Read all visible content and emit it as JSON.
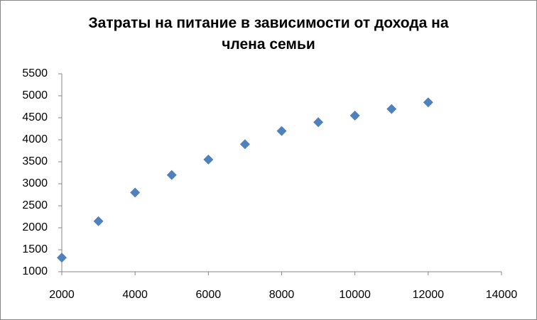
{
  "chart_data": {
    "type": "scatter",
    "title": "Затраты на питание в зависимости от дохода на члена семьи",
    "x": [
      2000,
      3000,
      4000,
      5000,
      6000,
      7000,
      8000,
      9000,
      10000,
      11000,
      12000
    ],
    "series": [
      {
        "color": "#4f81bd",
        "values": [
          1320,
          2150,
          2800,
          3200,
          3550,
          3900,
          4200,
          4400,
          4550,
          4700,
          4850
        ]
      }
    ],
    "xlim": [
      2000,
      14000
    ],
    "xticks": [
      2000,
      4000,
      6000,
      8000,
      10000,
      12000,
      14000
    ],
    "ylim": [
      1000,
      5500
    ],
    "yticks": [
      1000,
      1500,
      2000,
      2500,
      3000,
      3500,
      4000,
      4500,
      5000,
      5500
    ],
    "grid": false
  }
}
